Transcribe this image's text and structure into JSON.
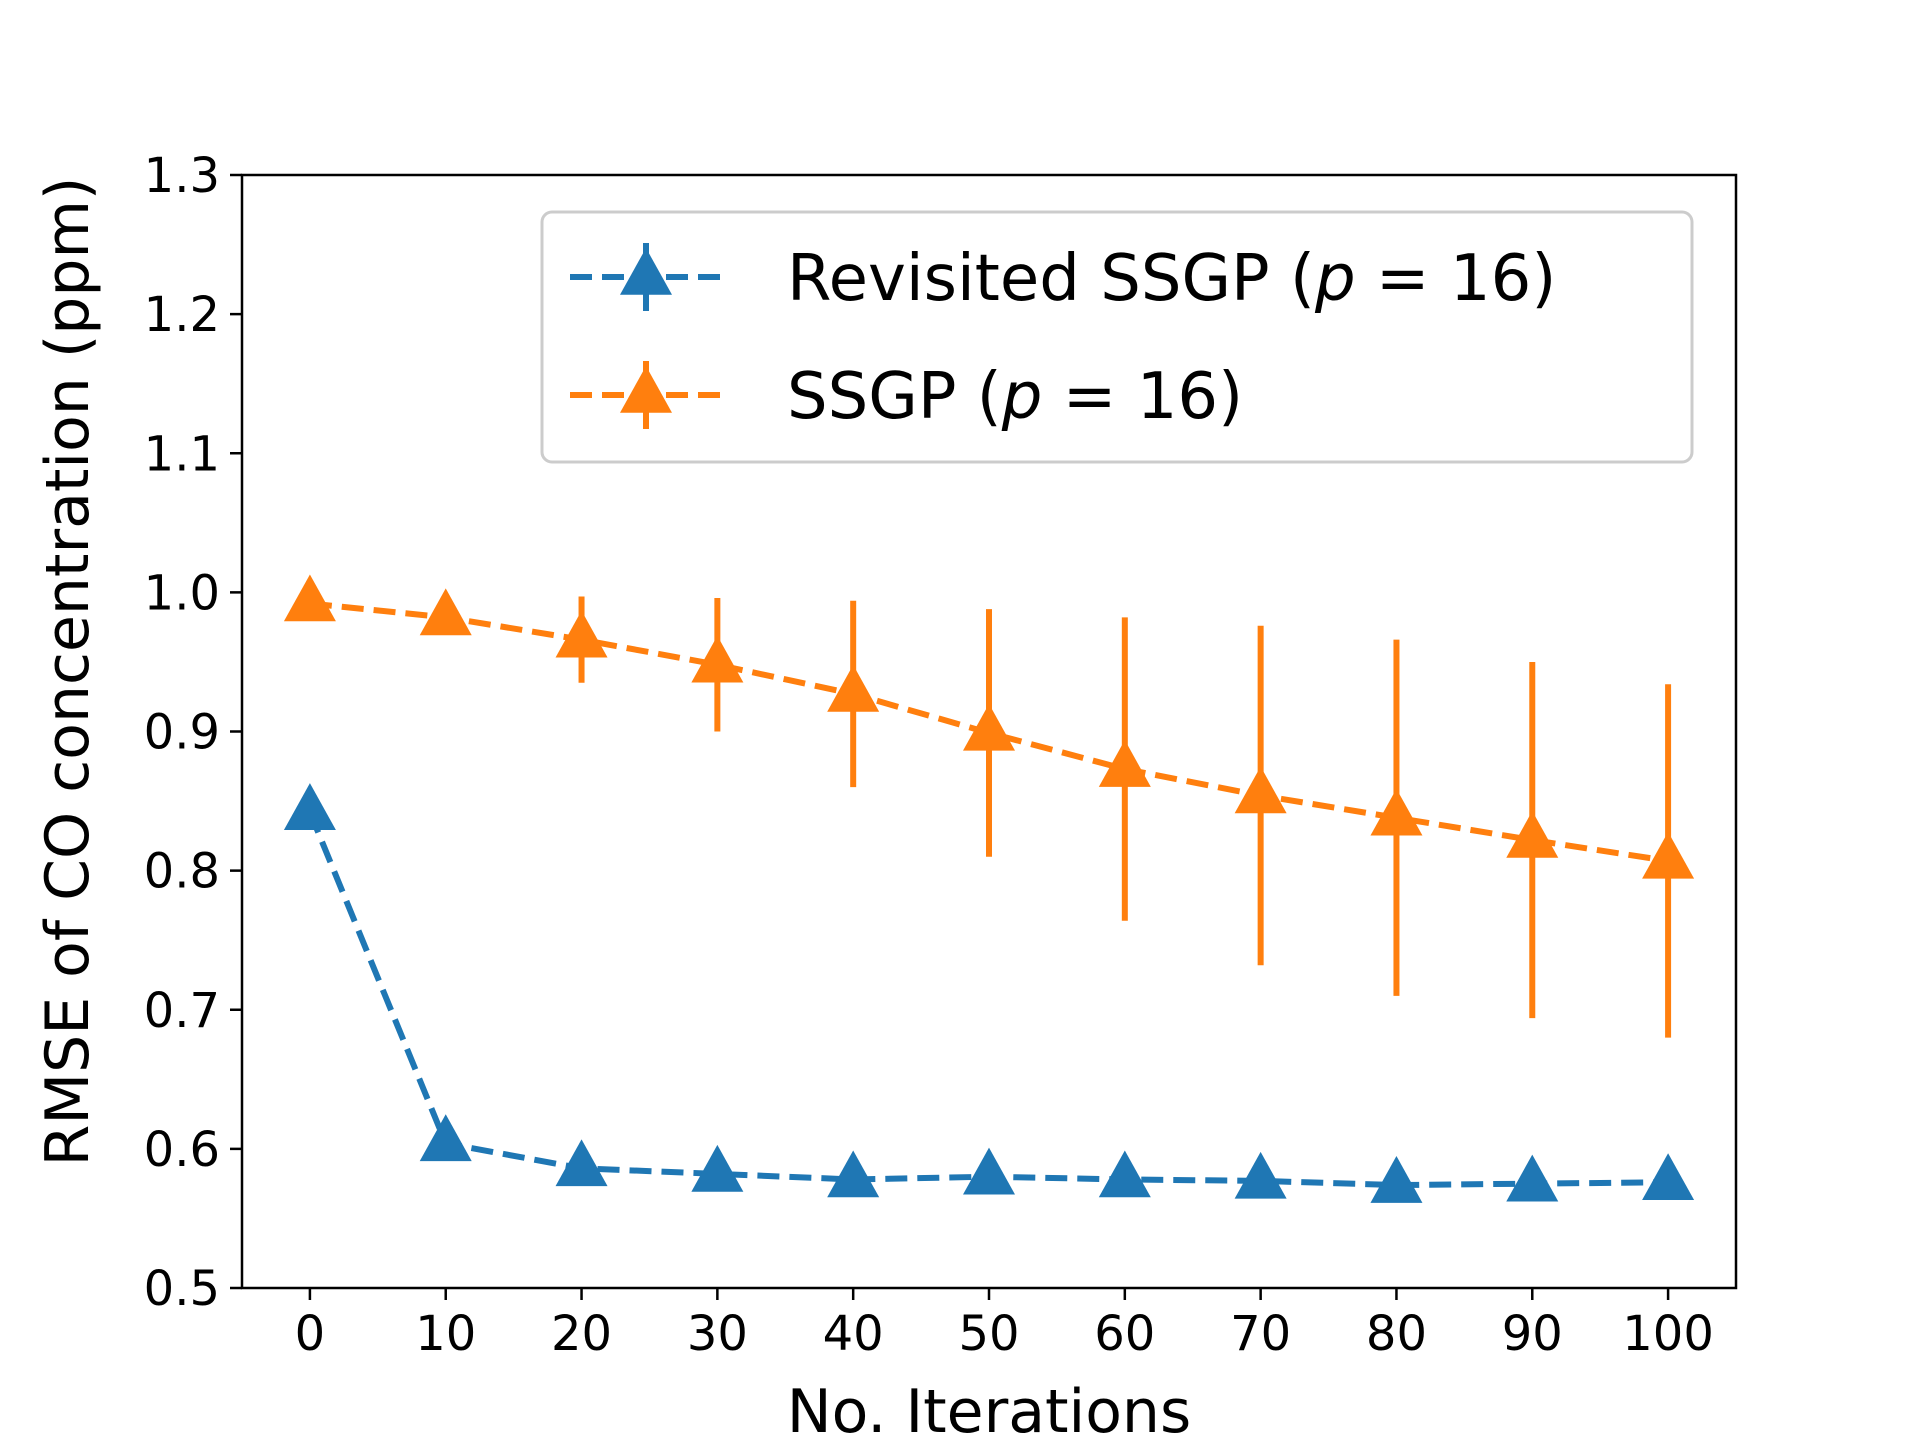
{
  "chart_data": {
    "type": "line",
    "xlabel": "No. Iterations",
    "ylabel": "RMSE of CO concentration (ppm)",
    "x": [
      0,
      10,
      20,
      30,
      40,
      50,
      60,
      70,
      80,
      90,
      100
    ],
    "xlim": [
      -5,
      105
    ],
    "ylim": [
      0.5,
      1.3
    ],
    "xticks": [
      "0",
      "10",
      "20",
      "30",
      "40",
      "50",
      "60",
      "70",
      "80",
      "90",
      "100"
    ],
    "yticks": [
      "0.5",
      "0.6",
      "0.7",
      "0.8",
      "0.9",
      "1.0",
      "1.1",
      "1.2",
      "1.3"
    ],
    "legend_position": "top-right",
    "series": [
      {
        "name": "Revisited SSGP (p = 16)",
        "legend_prefix": "Revisited SSGP (",
        "legend_var": "p",
        "legend_rest": " = 16)",
        "color": "#1f77b4",
        "line_style": "dashed",
        "marker": "triangle",
        "values": [
          0.842,
          0.604,
          0.586,
          0.582,
          0.578,
          0.58,
          0.578,
          0.577,
          0.574,
          0.575,
          0.576
        ],
        "errors": [
          0.01,
          0.003,
          0.003,
          0.002,
          0.002,
          0.002,
          0.002,
          0.002,
          0.002,
          0.002,
          0.002
        ]
      },
      {
        "name": "SSGP (p = 16)",
        "legend_prefix": "SSGP (",
        "legend_var": "p",
        "legend_rest": " = 16)",
        "color": "#ff7f0e",
        "line_style": "dashed",
        "marker": "triangle",
        "values": [
          0.992,
          0.982,
          0.966,
          0.948,
          0.927,
          0.899,
          0.873,
          0.854,
          0.838,
          0.822,
          0.807
        ],
        "errors": [
          0.0,
          0.0,
          0.031,
          0.048,
          0.067,
          0.089,
          0.109,
          0.122,
          0.128,
          0.128,
          0.127
        ]
      }
    ]
  }
}
